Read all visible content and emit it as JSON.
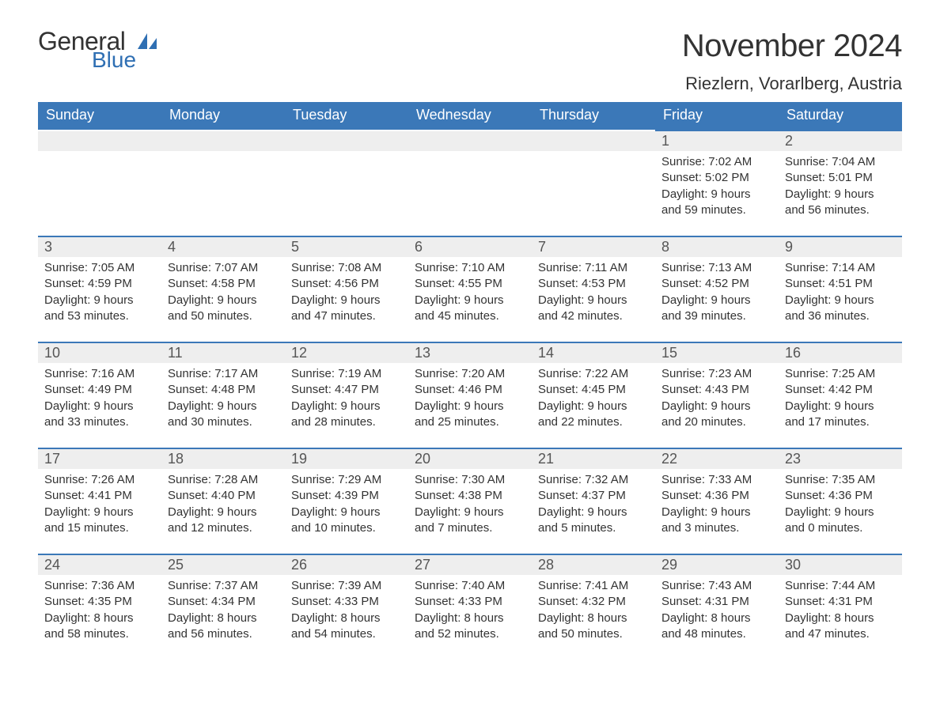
{
  "logo": {
    "text_general": "General",
    "text_blue": "Blue",
    "icon_color": "#2f6fb3"
  },
  "title": {
    "month": "November 2024",
    "location": "Riezlern, Vorarlberg, Austria"
  },
  "colors": {
    "header_bg": "#3b78b8",
    "header_text": "#ffffff",
    "day_bar_bg": "#eeeeee",
    "topline": "#3b78b8",
    "body_text": "#333333",
    "background": "#ffffff"
  },
  "weekdays": [
    "Sunday",
    "Monday",
    "Tuesday",
    "Wednesday",
    "Thursday",
    "Friday",
    "Saturday"
  ],
  "weeks": [
    [
      null,
      null,
      null,
      null,
      null,
      {
        "day": "1",
        "sunrise": "Sunrise: 7:02 AM",
        "sunset": "Sunset: 5:02 PM",
        "daylight1": "Daylight: 9 hours",
        "daylight2": "and 59 minutes."
      },
      {
        "day": "2",
        "sunrise": "Sunrise: 7:04 AM",
        "sunset": "Sunset: 5:01 PM",
        "daylight1": "Daylight: 9 hours",
        "daylight2": "and 56 minutes."
      }
    ],
    [
      {
        "day": "3",
        "sunrise": "Sunrise: 7:05 AM",
        "sunset": "Sunset: 4:59 PM",
        "daylight1": "Daylight: 9 hours",
        "daylight2": "and 53 minutes."
      },
      {
        "day": "4",
        "sunrise": "Sunrise: 7:07 AM",
        "sunset": "Sunset: 4:58 PM",
        "daylight1": "Daylight: 9 hours",
        "daylight2": "and 50 minutes."
      },
      {
        "day": "5",
        "sunrise": "Sunrise: 7:08 AM",
        "sunset": "Sunset: 4:56 PM",
        "daylight1": "Daylight: 9 hours",
        "daylight2": "and 47 minutes."
      },
      {
        "day": "6",
        "sunrise": "Sunrise: 7:10 AM",
        "sunset": "Sunset: 4:55 PM",
        "daylight1": "Daylight: 9 hours",
        "daylight2": "and 45 minutes."
      },
      {
        "day": "7",
        "sunrise": "Sunrise: 7:11 AM",
        "sunset": "Sunset: 4:53 PM",
        "daylight1": "Daylight: 9 hours",
        "daylight2": "and 42 minutes."
      },
      {
        "day": "8",
        "sunrise": "Sunrise: 7:13 AM",
        "sunset": "Sunset: 4:52 PM",
        "daylight1": "Daylight: 9 hours",
        "daylight2": "and 39 minutes."
      },
      {
        "day": "9",
        "sunrise": "Sunrise: 7:14 AM",
        "sunset": "Sunset: 4:51 PM",
        "daylight1": "Daylight: 9 hours",
        "daylight2": "and 36 minutes."
      }
    ],
    [
      {
        "day": "10",
        "sunrise": "Sunrise: 7:16 AM",
        "sunset": "Sunset: 4:49 PM",
        "daylight1": "Daylight: 9 hours",
        "daylight2": "and 33 minutes."
      },
      {
        "day": "11",
        "sunrise": "Sunrise: 7:17 AM",
        "sunset": "Sunset: 4:48 PM",
        "daylight1": "Daylight: 9 hours",
        "daylight2": "and 30 minutes."
      },
      {
        "day": "12",
        "sunrise": "Sunrise: 7:19 AM",
        "sunset": "Sunset: 4:47 PM",
        "daylight1": "Daylight: 9 hours",
        "daylight2": "and 28 minutes."
      },
      {
        "day": "13",
        "sunrise": "Sunrise: 7:20 AM",
        "sunset": "Sunset: 4:46 PM",
        "daylight1": "Daylight: 9 hours",
        "daylight2": "and 25 minutes."
      },
      {
        "day": "14",
        "sunrise": "Sunrise: 7:22 AM",
        "sunset": "Sunset: 4:45 PM",
        "daylight1": "Daylight: 9 hours",
        "daylight2": "and 22 minutes."
      },
      {
        "day": "15",
        "sunrise": "Sunrise: 7:23 AM",
        "sunset": "Sunset: 4:43 PM",
        "daylight1": "Daylight: 9 hours",
        "daylight2": "and 20 minutes."
      },
      {
        "day": "16",
        "sunrise": "Sunrise: 7:25 AM",
        "sunset": "Sunset: 4:42 PM",
        "daylight1": "Daylight: 9 hours",
        "daylight2": "and 17 minutes."
      }
    ],
    [
      {
        "day": "17",
        "sunrise": "Sunrise: 7:26 AM",
        "sunset": "Sunset: 4:41 PM",
        "daylight1": "Daylight: 9 hours",
        "daylight2": "and 15 minutes."
      },
      {
        "day": "18",
        "sunrise": "Sunrise: 7:28 AM",
        "sunset": "Sunset: 4:40 PM",
        "daylight1": "Daylight: 9 hours",
        "daylight2": "and 12 minutes."
      },
      {
        "day": "19",
        "sunrise": "Sunrise: 7:29 AM",
        "sunset": "Sunset: 4:39 PM",
        "daylight1": "Daylight: 9 hours",
        "daylight2": "and 10 minutes."
      },
      {
        "day": "20",
        "sunrise": "Sunrise: 7:30 AM",
        "sunset": "Sunset: 4:38 PM",
        "daylight1": "Daylight: 9 hours",
        "daylight2": "and 7 minutes."
      },
      {
        "day": "21",
        "sunrise": "Sunrise: 7:32 AM",
        "sunset": "Sunset: 4:37 PM",
        "daylight1": "Daylight: 9 hours",
        "daylight2": "and 5 minutes."
      },
      {
        "day": "22",
        "sunrise": "Sunrise: 7:33 AM",
        "sunset": "Sunset: 4:36 PM",
        "daylight1": "Daylight: 9 hours",
        "daylight2": "and 3 minutes."
      },
      {
        "day": "23",
        "sunrise": "Sunrise: 7:35 AM",
        "sunset": "Sunset: 4:36 PM",
        "daylight1": "Daylight: 9 hours",
        "daylight2": "and 0 minutes."
      }
    ],
    [
      {
        "day": "24",
        "sunrise": "Sunrise: 7:36 AM",
        "sunset": "Sunset: 4:35 PM",
        "daylight1": "Daylight: 8 hours",
        "daylight2": "and 58 minutes."
      },
      {
        "day": "25",
        "sunrise": "Sunrise: 7:37 AM",
        "sunset": "Sunset: 4:34 PM",
        "daylight1": "Daylight: 8 hours",
        "daylight2": "and 56 minutes."
      },
      {
        "day": "26",
        "sunrise": "Sunrise: 7:39 AM",
        "sunset": "Sunset: 4:33 PM",
        "daylight1": "Daylight: 8 hours",
        "daylight2": "and 54 minutes."
      },
      {
        "day": "27",
        "sunrise": "Sunrise: 7:40 AM",
        "sunset": "Sunset: 4:33 PM",
        "daylight1": "Daylight: 8 hours",
        "daylight2": "and 52 minutes."
      },
      {
        "day": "28",
        "sunrise": "Sunrise: 7:41 AM",
        "sunset": "Sunset: 4:32 PM",
        "daylight1": "Daylight: 8 hours",
        "daylight2": "and 50 minutes."
      },
      {
        "day": "29",
        "sunrise": "Sunrise: 7:43 AM",
        "sunset": "Sunset: 4:31 PM",
        "daylight1": "Daylight: 8 hours",
        "daylight2": "and 48 minutes."
      },
      {
        "day": "30",
        "sunrise": "Sunrise: 7:44 AM",
        "sunset": "Sunset: 4:31 PM",
        "daylight1": "Daylight: 8 hours",
        "daylight2": "and 47 minutes."
      }
    ]
  ]
}
